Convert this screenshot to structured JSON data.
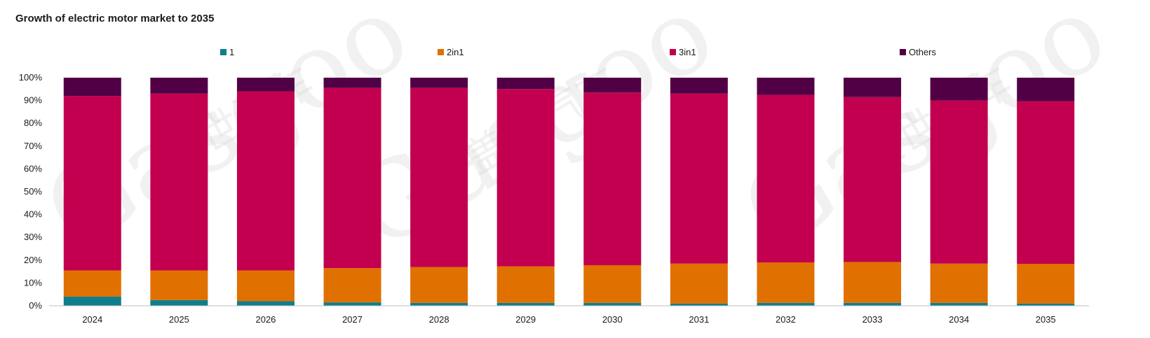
{
  "chart_data": {
    "type": "bar",
    "stacked": true,
    "normalized": true,
    "title": "Growth of electric motor market to 2035",
    "xlabel": "",
    "ylabel": "",
    "ylim": [
      0,
      100
    ],
    "y_ticks": [
      "0%",
      "10%",
      "20%",
      "30%",
      "40%",
      "50%",
      "60%",
      "70%",
      "80%",
      "90%",
      "100%"
    ],
    "categories": [
      "2024",
      "2025",
      "2026",
      "2027",
      "2028",
      "2029",
      "2030",
      "2031",
      "2032",
      "2033",
      "2034",
      "2035"
    ],
    "series": [
      {
        "name": "1",
        "color": "#0f7e8c",
        "values": [
          4,
          2.5,
          2,
          1.5,
          1.3,
          1.3,
          1.3,
          1,
          1.3,
          1.3,
          1.3,
          1
        ]
      },
      {
        "name": "2in1",
        "color": "#e07000",
        "values": [
          11.5,
          13,
          13.5,
          15,
          15.7,
          16,
          16.5,
          17.5,
          17.7,
          17.9,
          17.2,
          17.4
        ]
      },
      {
        "name": "3in1",
        "color": "#c2004f",
        "values": [
          76.5,
          77.5,
          78.5,
          79,
          78.5,
          77.7,
          75.7,
          74.5,
          73.5,
          72.3,
          71.5,
          71.3
        ]
      },
      {
        "name": "Others",
        "color": "#520045",
        "values": [
          8,
          7,
          6,
          4.5,
          4.5,
          5,
          6.5,
          7,
          7.5,
          8.5,
          10,
          10.3
        ]
      }
    ],
    "grid": false,
    "legend_position": "top"
  },
  "watermark": {
    "text": "Gasgoo",
    "chinese": "盖世汽车"
  }
}
